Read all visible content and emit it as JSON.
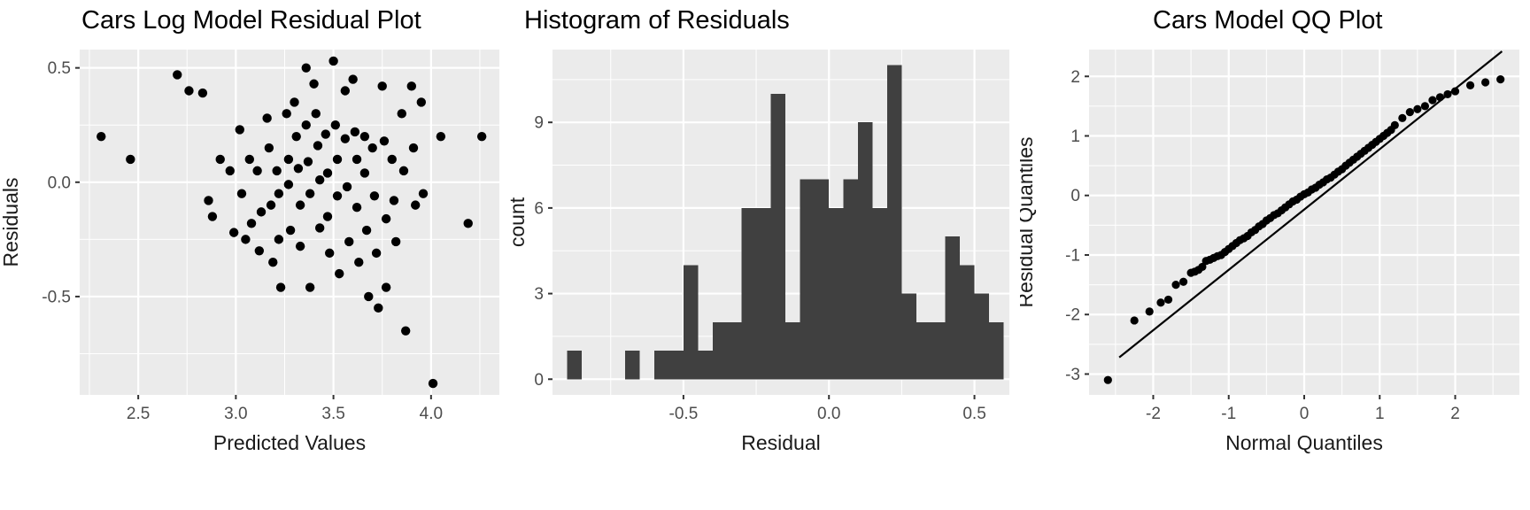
{
  "style": {
    "panel_bg": "#EBEBEB",
    "grid_color": "#FFFFFF",
    "point_color": "#000000",
    "bar_color": "#404040",
    "tick_label_color": "#4D4D4D",
    "axis_title_color": "#1A1A1A",
    "title_color": "#000000",
    "tick_mark_color": "#333333",
    "qq_line_color": "#000000"
  },
  "chart_data": [
    {
      "type": "scatter",
      "title": "Cars Log Model Residual Plot",
      "xlabel": "Predicted Values",
      "ylabel": "Residuals",
      "xlim": [
        2.2,
        4.35
      ],
      "ylim": [
        -0.93,
        0.58
      ],
      "grid": true,
      "legend": false,
      "xticks": [
        {
          "v": 2.5,
          "label": "2.5"
        },
        {
          "v": 3.0,
          "label": "3.0"
        },
        {
          "v": 3.5,
          "label": "3.5"
        },
        {
          "v": 4.0,
          "label": "4.0"
        }
      ],
      "yticks": [
        {
          "v": -0.5,
          "label": "-0.5"
        },
        {
          "v": 0.0,
          "label": "0.0"
        },
        {
          "v": 0.5,
          "label": "0.5"
        }
      ],
      "points": [
        [
          2.31,
          0.2
        ],
        [
          2.46,
          0.1
        ],
        [
          2.7,
          0.47
        ],
        [
          2.76,
          0.4
        ],
        [
          2.83,
          0.39
        ],
        [
          2.86,
          -0.08
        ],
        [
          2.88,
          -0.15
        ],
        [
          2.92,
          0.1
        ],
        [
          2.97,
          0.05
        ],
        [
          2.99,
          -0.22
        ],
        [
          3.02,
          0.23
        ],
        [
          3.03,
          -0.05
        ],
        [
          3.05,
          -0.25
        ],
        [
          3.07,
          0.1
        ],
        [
          3.08,
          -0.18
        ],
        [
          3.11,
          0.05
        ],
        [
          3.12,
          -0.3
        ],
        [
          3.13,
          -0.13
        ],
        [
          3.16,
          0.28
        ],
        [
          3.17,
          0.15
        ],
        [
          3.18,
          -0.1
        ],
        [
          3.19,
          -0.35
        ],
        [
          3.21,
          0.05
        ],
        [
          3.22,
          -0.05
        ],
        [
          3.22,
          -0.25
        ],
        [
          3.23,
          -0.46
        ],
        [
          3.26,
          0.3
        ],
        [
          3.27,
          0.1
        ],
        [
          3.27,
          -0.01
        ],
        [
          3.28,
          -0.21
        ],
        [
          3.3,
          0.35
        ],
        [
          3.31,
          0.2
        ],
        [
          3.32,
          0.06
        ],
        [
          3.33,
          -0.1
        ],
        [
          3.33,
          -0.28
        ],
        [
          3.36,
          0.5
        ],
        [
          3.36,
          0.25
        ],
        [
          3.37,
          0.09
        ],
        [
          3.38,
          -0.05
        ],
        [
          3.38,
          -0.46
        ],
        [
          3.4,
          0.43
        ],
        [
          3.41,
          0.3
        ],
        [
          3.42,
          0.16
        ],
        [
          3.43,
          0.01
        ],
        [
          3.43,
          -0.2
        ],
        [
          3.46,
          0.21
        ],
        [
          3.47,
          0.04
        ],
        [
          3.47,
          -0.15
        ],
        [
          3.48,
          -0.31
        ],
        [
          3.5,
          0.53
        ],
        [
          3.51,
          0.25
        ],
        [
          3.52,
          0.1
        ],
        [
          3.52,
          -0.06
        ],
        [
          3.53,
          -0.4
        ],
        [
          3.56,
          0.4
        ],
        [
          3.56,
          0.19
        ],
        [
          3.57,
          -0.02
        ],
        [
          3.58,
          -0.26
        ],
        [
          3.6,
          0.45
        ],
        [
          3.61,
          0.22
        ],
        [
          3.62,
          0.1
        ],
        [
          3.62,
          -0.11
        ],
        [
          3.63,
          -0.35
        ],
        [
          3.66,
          0.2
        ],
        [
          3.66,
          0.04
        ],
        [
          3.67,
          -0.21
        ],
        [
          3.68,
          -0.5
        ],
        [
          3.7,
          0.15
        ],
        [
          3.71,
          -0.06
        ],
        [
          3.72,
          -0.31
        ],
        [
          3.73,
          -0.55
        ],
        [
          3.75,
          0.42
        ],
        [
          3.76,
          0.18
        ],
        [
          3.77,
          -0.16
        ],
        [
          3.77,
          -0.46
        ],
        [
          3.8,
          0.1
        ],
        [
          3.81,
          -0.08
        ],
        [
          3.82,
          -0.26
        ],
        [
          3.85,
          0.3
        ],
        [
          3.86,
          0.05
        ],
        [
          3.87,
          -0.65
        ],
        [
          3.9,
          0.42
        ],
        [
          3.91,
          0.15
        ],
        [
          3.92,
          -0.1
        ],
        [
          3.95,
          0.35
        ],
        [
          3.96,
          -0.05
        ],
        [
          4.01,
          -0.88
        ],
        [
          4.05,
          0.2
        ],
        [
          4.19,
          -0.18
        ],
        [
          4.26,
          0.2
        ]
      ]
    },
    {
      "type": "bar",
      "subtype": "histogram",
      "title": "Histogram of Residuals",
      "xlabel": "Residual",
      "ylabel": "count",
      "xlim": [
        -0.95,
        0.62
      ],
      "ylim": [
        -0.55,
        11.55
      ],
      "grid": true,
      "legend": false,
      "bin_width": 0.05,
      "xticks": [
        {
          "v": -0.5,
          "label": "-0.5"
        },
        {
          "v": 0.0,
          "label": "0.0"
        },
        {
          "v": 0.5,
          "label": "0.5"
        }
      ],
      "yticks": [
        {
          "v": 0,
          "label": "0"
        },
        {
          "v": 3,
          "label": "3"
        },
        {
          "v": 6,
          "label": "6"
        },
        {
          "v": 9,
          "label": "9"
        }
      ],
      "bins": [
        {
          "x": -0.875,
          "count": 1
        },
        {
          "x": -0.675,
          "count": 1
        },
        {
          "x": -0.575,
          "count": 1
        },
        {
          "x": -0.525,
          "count": 1
        },
        {
          "x": -0.475,
          "count": 4
        },
        {
          "x": -0.425,
          "count": 1
        },
        {
          "x": -0.375,
          "count": 2
        },
        {
          "x": -0.325,
          "count": 2
        },
        {
          "x": -0.275,
          "count": 6
        },
        {
          "x": -0.225,
          "count": 6
        },
        {
          "x": -0.175,
          "count": 10
        },
        {
          "x": -0.125,
          "count": 2
        },
        {
          "x": -0.075,
          "count": 7
        },
        {
          "x": -0.025,
          "count": 7
        },
        {
          "x": 0.025,
          "count": 6
        },
        {
          "x": 0.075,
          "count": 7
        },
        {
          "x": 0.125,
          "count": 9
        },
        {
          "x": 0.175,
          "count": 6
        },
        {
          "x": 0.225,
          "count": 11
        },
        {
          "x": 0.275,
          "count": 3
        },
        {
          "x": 0.325,
          "count": 2
        },
        {
          "x": 0.375,
          "count": 2
        },
        {
          "x": 0.425,
          "count": 5
        },
        {
          "x": 0.475,
          "count": 4
        },
        {
          "x": 0.525,
          "count": 3
        },
        {
          "x": 0.575,
          "count": 2
        }
      ]
    },
    {
      "type": "scatter",
      "subtype": "qq",
      "title": "Cars Model QQ Plot",
      "xlabel": "Normal Quantiles",
      "ylabel": "Residual Quantiles",
      "xlim": [
        -2.85,
        2.85
      ],
      "ylim": [
        -3.35,
        2.45
      ],
      "grid": true,
      "legend": false,
      "xticks": [
        {
          "v": -2,
          "label": "-2"
        },
        {
          "v": -1,
          "label": "-1"
        },
        {
          "v": 0,
          "label": "0"
        },
        {
          "v": 1,
          "label": "1"
        },
        {
          "v": 2,
          "label": "2"
        }
      ],
      "yticks": [
        {
          "v": -3,
          "label": "-3"
        },
        {
          "v": -2,
          "label": "-2"
        },
        {
          "v": -1,
          "label": "-1"
        },
        {
          "v": 0,
          "label": "0"
        },
        {
          "v": 1,
          "label": "1"
        },
        {
          "v": 2,
          "label": "2"
        }
      ],
      "line": {
        "x1": -2.45,
        "y1": -2.72,
        "x2": 2.62,
        "y2": 2.42
      },
      "points": [
        [
          -2.6,
          -3.1
        ],
        [
          -2.25,
          -2.1
        ],
        [
          -2.05,
          -1.95
        ],
        [
          -1.9,
          -1.8
        ],
        [
          -1.8,
          -1.75
        ],
        [
          -1.7,
          -1.5
        ],
        [
          -1.6,
          -1.45
        ],
        [
          -1.5,
          -1.3
        ],
        [
          -1.45,
          -1.28
        ],
        [
          -1.4,
          -1.25
        ],
        [
          -1.35,
          -1.2
        ],
        [
          -1.3,
          -1.1
        ],
        [
          -1.25,
          -1.08
        ],
        [
          -1.2,
          -1.05
        ],
        [
          -1.15,
          -1.02
        ],
        [
          -1.1,
          -1.0
        ],
        [
          -1.05,
          -0.95
        ],
        [
          -1.0,
          -0.9
        ],
        [
          -0.95,
          -0.85
        ],
        [
          -0.9,
          -0.8
        ],
        [
          -0.85,
          -0.75
        ],
        [
          -0.8,
          -0.72
        ],
        [
          -0.75,
          -0.68
        ],
        [
          -0.7,
          -0.62
        ],
        [
          -0.65,
          -0.58
        ],
        [
          -0.6,
          -0.52
        ],
        [
          -0.55,
          -0.48
        ],
        [
          -0.5,
          -0.42
        ],
        [
          -0.45,
          -0.38
        ],
        [
          -0.4,
          -0.33
        ],
        [
          -0.35,
          -0.3
        ],
        [
          -0.3,
          -0.25
        ],
        [
          -0.25,
          -0.2
        ],
        [
          -0.2,
          -0.15
        ],
        [
          -0.15,
          -0.1
        ],
        [
          -0.1,
          -0.07
        ],
        [
          -0.05,
          -0.02
        ],
        [
          0.0,
          0.02
        ],
        [
          0.05,
          0.05
        ],
        [
          0.1,
          0.1
        ],
        [
          0.15,
          0.13
        ],
        [
          0.2,
          0.18
        ],
        [
          0.25,
          0.22
        ],
        [
          0.3,
          0.27
        ],
        [
          0.35,
          0.3
        ],
        [
          0.4,
          0.35
        ],
        [
          0.45,
          0.4
        ],
        [
          0.5,
          0.44
        ],
        [
          0.55,
          0.5
        ],
        [
          0.6,
          0.55
        ],
        [
          0.65,
          0.6
        ],
        [
          0.7,
          0.65
        ],
        [
          0.75,
          0.7
        ],
        [
          0.8,
          0.75
        ],
        [
          0.85,
          0.8
        ],
        [
          0.9,
          0.85
        ],
        [
          0.95,
          0.9
        ],
        [
          1.0,
          0.95
        ],
        [
          1.05,
          1.0
        ],
        [
          1.1,
          1.05
        ],
        [
          1.15,
          1.1
        ],
        [
          1.2,
          1.18
        ],
        [
          1.3,
          1.3
        ],
        [
          1.4,
          1.4
        ],
        [
          1.5,
          1.45
        ],
        [
          1.6,
          1.5
        ],
        [
          1.7,
          1.6
        ],
        [
          1.8,
          1.65
        ],
        [
          1.9,
          1.7
        ],
        [
          2.0,
          1.75
        ],
        [
          2.2,
          1.85
        ],
        [
          2.4,
          1.9
        ],
        [
          2.6,
          1.95
        ]
      ]
    }
  ]
}
